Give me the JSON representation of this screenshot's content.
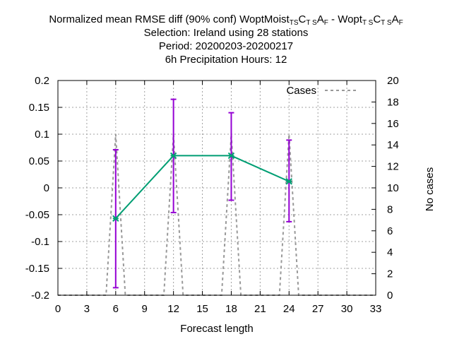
{
  "chart_data": {
    "type": "line",
    "title_lines": [
      "Normalized mean RMSE diff (90% conf) WoptMoist_TSC_TSA_F - Wopt_TSC_TSA_F",
      "Selection: Ireland using    28 stations",
      "Period: 20200203-20200217",
      "6h Precipitation   Hours:  12"
    ],
    "title_main": {
      "a": "Normalized mean RMSE diff (90% conf) WoptMoist",
      "b": "TS",
      "c": "C",
      "d": "T S",
      "e": "A",
      "f": "F",
      "g": " - Wopt",
      "h": "T S",
      "i": "C",
      "j": "T S",
      "k": "A",
      "l": "F"
    },
    "xlabel": "Forecast length",
    "ylabel": "",
    "y2label": "No cases",
    "xlim": [
      0,
      33
    ],
    "ylim": [
      -0.2,
      0.2
    ],
    "y2lim": [
      0,
      20
    ],
    "xticks": [
      0,
      3,
      6,
      9,
      12,
      15,
      18,
      21,
      24,
      27,
      30,
      33
    ],
    "yticks": [
      -0.2,
      -0.15,
      -0.1,
      -0.05,
      0,
      0.05,
      0.1,
      0.15,
      0.2
    ],
    "yticklabels": [
      "-0.2",
      "-0.15",
      "-0.1",
      "-0.05",
      "0",
      "0.05",
      "0.1",
      "0.15",
      "0.2"
    ],
    "y2ticks": [
      0,
      2,
      4,
      6,
      8,
      10,
      12,
      14,
      16,
      18,
      20
    ],
    "grid": true,
    "legend_position": "top-right",
    "series": [
      {
        "name": "",
        "axis": "y",
        "color": "#009e73",
        "x": [
          6,
          12,
          18,
          24
        ],
        "y": [
          -0.057,
          0.06,
          0.06,
          0.012
        ],
        "err_low": [
          -0.186,
          -0.046,
          -0.023,
          -0.063
        ],
        "err_high": [
          0.071,
          0.165,
          0.14,
          0.089
        ],
        "err_color": "#9400d3"
      },
      {
        "name": "Cases",
        "axis": "y2",
        "color": "#999999",
        "dashed": true,
        "x": [
          0,
          5,
          6,
          7,
          11,
          12,
          13,
          17,
          18,
          19,
          23,
          24,
          25,
          33
        ],
        "y": [
          0,
          0,
          15,
          0,
          0,
          15,
          0,
          0,
          15,
          0,
          0,
          15,
          0,
          0
        ]
      }
    ]
  }
}
